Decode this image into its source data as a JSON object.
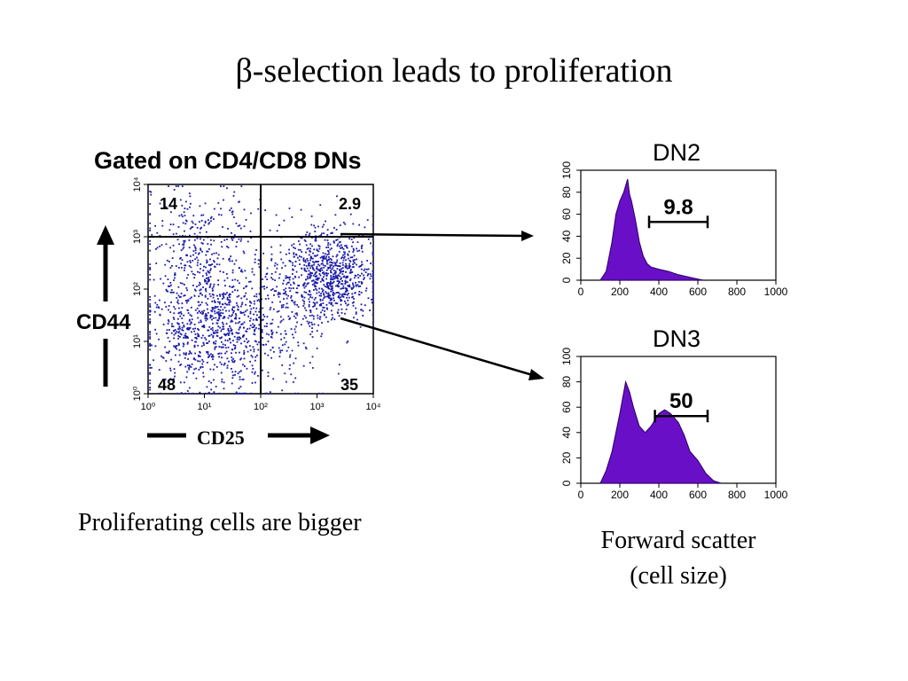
{
  "slide": {
    "title": "β-selection leads to proliferation",
    "gate_label": "Gated on CD4/CD8 DNs",
    "caption_left": "Proliferating cells are bigger",
    "caption_right_line1": "Forward scatter",
    "caption_right_line2": "(cell size)"
  },
  "colors": {
    "dots": "#1a1aa8",
    "histogram_fill": "#6a0fc8",
    "axis": "#000000"
  },
  "chart_data": [
    {
      "type": "scatter",
      "title": "",
      "xlabel": "CD25",
      "ylabel": "CD44",
      "x_scale": "log",
      "y_scale": "log",
      "xlim": [
        1,
        10000
      ],
      "ylim": [
        1,
        10000
      ],
      "x_ticks": [
        "10⁰",
        "10¹",
        "10²",
        "10³",
        "10⁴"
      ],
      "y_ticks": [
        "10⁰",
        "10¹",
        "10²",
        "10³",
        "10⁴"
      ],
      "quadrant_percentages": {
        "upper_left": "14",
        "upper_right": "2.9",
        "lower_left": "48",
        "lower_right": "35"
      },
      "quadrant_gates": {
        "x": 100,
        "y": 1000
      },
      "density_clusters": [
        {
          "center": [
            1500,
            180
          ],
          "spread": 0.45,
          "share": 0.4
        },
        {
          "center": [
            12,
            20
          ],
          "spread": 0.6,
          "share": 0.33
        },
        {
          "center": [
            8,
            800
          ],
          "spread": 0.55,
          "share": 0.12
        },
        {
          "center": [
            60,
            20
          ],
          "spread": 0.7,
          "share": 0.15
        }
      ]
    },
    {
      "type": "area",
      "title": "DN2",
      "xlabel": "Forward scatter",
      "ylabel": "",
      "xlim": [
        0,
        1000
      ],
      "ylim": [
        0,
        100
      ],
      "x_ticks": [
        "0",
        "200",
        "400",
        "600",
        "800",
        "1000"
      ],
      "y_ticks": [
        "0",
        "20",
        "40",
        "60",
        "80",
        "100"
      ],
      "x": [
        100,
        130,
        160,
        180,
        200,
        220,
        240,
        250,
        260,
        280,
        300,
        320,
        340,
        360,
        400,
        450,
        500,
        550,
        600,
        630
      ],
      "y": [
        0,
        8,
        35,
        60,
        72,
        80,
        92,
        78,
        72,
        55,
        35,
        22,
        15,
        12,
        10,
        8,
        5,
        3,
        1,
        0
      ],
      "gate": {
        "label": "9.8",
        "range": [
          350,
          650
        ]
      }
    },
    {
      "type": "area",
      "title": "DN3",
      "xlabel": "Forward scatter",
      "ylabel": "",
      "xlim": [
        0,
        1000
      ],
      "ylim": [
        0,
        100
      ],
      "x_ticks": [
        "0",
        "200",
        "400",
        "600",
        "800",
        "1000"
      ],
      "y_ticks": [
        "0",
        "20",
        "40",
        "60",
        "80",
        "100"
      ],
      "x": [
        100,
        130,
        160,
        200,
        230,
        250,
        270,
        300,
        330,
        360,
        400,
        430,
        460,
        500,
        530,
        560,
        600,
        640,
        680,
        720
      ],
      "y": [
        0,
        10,
        25,
        55,
        80,
        72,
        60,
        45,
        40,
        45,
        55,
        58,
        55,
        48,
        38,
        25,
        18,
        8,
        2,
        0
      ],
      "gate": {
        "label": "50",
        "range": [
          380,
          650
        ]
      }
    }
  ]
}
